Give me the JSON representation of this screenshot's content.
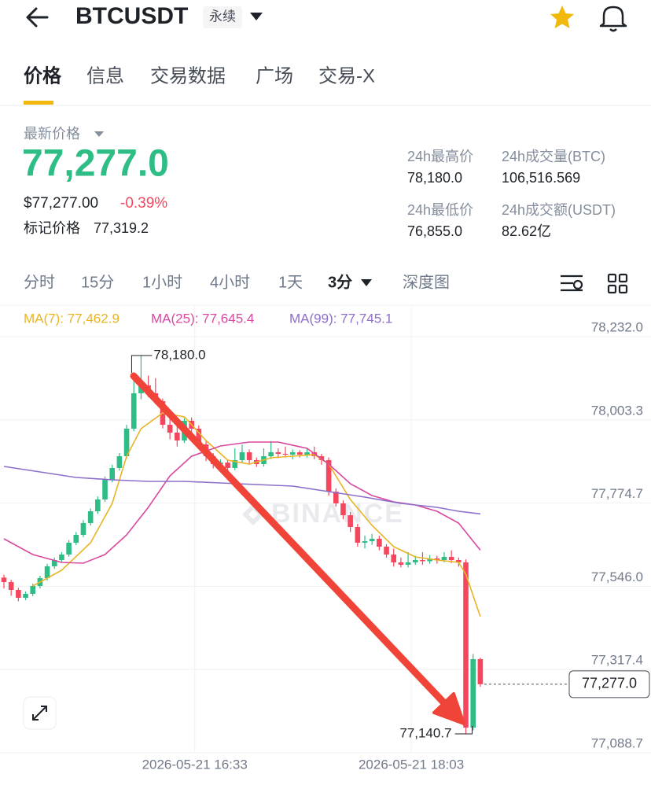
{
  "header": {
    "title": "BTCUSDT",
    "badge": "永续"
  },
  "tabs": [
    "价格",
    "信息",
    "交易数据",
    "广场",
    "交易-X"
  ],
  "price": {
    "label": "最新价格",
    "last": "77,277.0",
    "usd": "$77,277.00",
    "change": "-0.39%",
    "mark_label": "标记价格",
    "mark_price": "77,319.2"
  },
  "stats": [
    {
      "label": "24h最高价",
      "value": "78,180.0"
    },
    {
      "label": "24h成交量(BTC)",
      "value": "106,516.569"
    },
    {
      "label": "24h最低价",
      "value": "76,855.0"
    },
    {
      "label": "24h成交额(USDT)",
      "value": "82.62亿"
    }
  ],
  "timeframes": [
    "分时",
    "15分",
    "1小时",
    "4小时",
    "1天",
    "3分",
    "深度图"
  ],
  "chart_data": {
    "type": "candlestick",
    "categories": [
      null,
      null,
      null,
      null,
      null,
      null,
      null,
      null,
      null,
      null,
      null,
      null,
      null,
      null,
      null,
      null,
      null,
      null,
      null,
      null,
      null,
      null,
      null,
      null,
      null,
      null,
      "2026-05-21 16:33",
      null,
      null,
      null,
      null,
      null,
      null,
      null,
      null,
      null,
      null,
      null,
      null,
      null,
      null,
      null,
      null,
      null,
      null,
      null,
      null,
      null,
      null,
      null,
      null,
      null,
      null,
      null,
      null,
      null,
      "2026-05-21 18:03",
      null,
      null,
      null,
      null,
      null,
      null,
      null,
      null,
      null,
      null
    ],
    "open": [
      77570.0,
      77557.7,
      77536.1,
      77514.5,
      77525.3,
      77546.9,
      77568.5,
      77600.9,
      77618.2,
      77633.3,
      77665.8,
      77687.4,
      77719.8,
      77752.2,
      77784.6,
      77838.7,
      77871.1,
      77903.5,
      77979.1,
      78076.4,
      78098.0,
      78076.4,
      78054.8,
      77989.9,
      77968.3,
      77946.7,
      78000.8,
      77979.1,
      77935.9,
      77903.5,
      77881.9,
      77886.0,
      77871.1,
      77892.7,
      77914.3,
      77892.7,
      77881.9,
      77903.5,
      77914.3,
      77910.0,
      77907.8,
      77914.3,
      77907.8,
      77914.3,
      77903.5,
      77892.7,
      77806.2,
      77773.8,
      77741.4,
      77709.0,
      77665.8,
      77670.0,
      77676.6,
      77655.0,
      77633.3,
      77611.7,
      77605.3,
      77611.7,
      77618.2,
      77615.0,
      77622.5,
      77618.2,
      77626.9,
      77618.2,
      77611.7,
      77157.9,
      77345.9
    ],
    "high": [
      77578.0,
      77564.0,
      77542.0,
      77532.0,
      77553.0,
      77575.0,
      77608.0,
      77625.0,
      77640.0,
      77673.0,
      77695.0,
      77728.0,
      77760.0,
      77793.0,
      77848.0,
      77880.0,
      77912.0,
      77990.0,
      78110.0,
      78180.0,
      78125.0,
      78118.0,
      78062.0,
      78010.0,
      77990.0,
      78008.0,
      78010.0,
      77988.0,
      77945.0,
      77912.0,
      77895.0,
      77893.0,
      77925.0,
      77935.0,
      77922.0,
      77900.0,
      77925.0,
      77945.0,
      77925.0,
      77930.0,
      77922.0,
      77920.0,
      77925.0,
      77930.0,
      77910.0,
      77900.0,
      77815.0,
      77782.0,
      77750.0,
      77718.0,
      77685.0,
      77690.0,
      77685.0,
      77662.0,
      77650.0,
      77625.0,
      77640.0,
      77630.0,
      77640.0,
      77632.0,
      77630.0,
      77640.0,
      77645.0,
      77625.0,
      77620.0,
      77360.0,
      77350.0
    ],
    "low": [
      77540.0,
      77520.0,
      77505.0,
      77508.0,
      77519.0,
      77540.0,
      77562.0,
      77594.0,
      77612.0,
      77627.0,
      77659.0,
      77681.0,
      77713.0,
      77745.0,
      77778.0,
      77832.0,
      77864.0,
      77897.0,
      77972.0,
      78060.0,
      78066.0,
      78046.0,
      77980.0,
      77950.0,
      77930.0,
      77940.0,
      77960.0,
      77925.0,
      77890.0,
      77870.0,
      77872.0,
      77862.0,
      77865.0,
      77885.0,
      77884.0,
      77874.0,
      77875.0,
      77896.0,
      77898.0,
      77900.0,
      77895.0,
      77900.0,
      77900.0,
      77895.0,
      77880.0,
      77795.0,
      77765.0,
      77730.0,
      77695.0,
      77655.0,
      77650.0,
      77660.0,
      77645.0,
      77625.0,
      77600.0,
      77598.0,
      77598.0,
      77605.0,
      77605.0,
      77608.0,
      77608.0,
      77612.0,
      77610.0,
      77600.0,
      77140.7,
      77150.0,
      77270.0
    ],
    "close": [
      77557.7,
      77536.1,
      77514.5,
      77525.3,
      77546.9,
      77568.5,
      77600.9,
      77618.2,
      77633.3,
      77665.8,
      77687.4,
      77719.8,
      77752.2,
      77784.6,
      77838.7,
      77871.1,
      77903.5,
      77979.1,
      78076.4,
      78098.0,
      78076.4,
      78054.8,
      77989.9,
      77968.3,
      77946.7,
      78000.8,
      77979.1,
      77935.9,
      77903.5,
      77881.9,
      77886.0,
      77871.1,
      77892.7,
      77914.3,
      77892.7,
      77881.9,
      77903.5,
      77914.3,
      77910.0,
      77907.8,
      77914.3,
      77907.8,
      77914.3,
      77903.5,
      77892.7,
      77806.2,
      77773.8,
      77741.4,
      77709.0,
      77665.8,
      77670.0,
      77676.6,
      77655.0,
      77633.3,
      77611.7,
      77605.3,
      77611.7,
      77618.2,
      77615.0,
      77622.5,
      77618.2,
      77626.9,
      77618.2,
      77611.7,
      77157.9,
      77345.9,
      77277.0
    ],
    "up_color": "#2ebd85",
    "down_color": "#f6465d",
    "series": [
      {
        "name": "MA(7): 77,462.9",
        "color": "#e9b424",
        "x": [
          4,
          8,
          12,
          15,
          17,
          19,
          22,
          25,
          28,
          31,
          34,
          37,
          40,
          43,
          45,
          48,
          51,
          54,
          57,
          60,
          63,
          64,
          66
        ],
        "values": [
          77546.9,
          77590.1,
          77665.8,
          77773.8,
          77903.5,
          77979.1,
          78022.4,
          78011.6,
          77946.7,
          77892.7,
          77881.9,
          77899.2,
          77903.5,
          77907.8,
          77881.9,
          77784.6,
          77713.3,
          77655.0,
          77626.9,
          77618.2,
          77611.7,
          77579.3,
          77462.9
        ]
      },
      {
        "name": "MA(25): 77,645.4",
        "color": "#d9489f",
        "x": [
          0,
          4,
          8,
          11,
          14,
          17,
          20,
          23,
          26,
          30,
          34,
          38,
          42,
          45,
          48,
          51,
          54,
          57,
          60,
          63,
          66
        ],
        "values": [
          77676.6,
          77633.3,
          77611.7,
          77609.6,
          77633.3,
          77687.4,
          77763.0,
          77849.5,
          77903.5,
          77931.6,
          77942.4,
          77942.4,
          77925.1,
          77881.9,
          77827.9,
          77795.4,
          77778.1,
          77769.5,
          77752.2,
          77719.8,
          77645.4
        ]
      },
      {
        "name": "MA(99): 77,745.1",
        "color": "#8c6fcb",
        "x": [
          0,
          5,
          10,
          15,
          20,
          25,
          30,
          35,
          40,
          45,
          50,
          55,
          60,
          63,
          66
        ],
        "values": [
          77875.4,
          77860.3,
          77845.1,
          77838.7,
          77834.3,
          77834.3,
          77830.0,
          77825.7,
          77821.4,
          77806.2,
          77791.1,
          77773.8,
          77763.0,
          77752.2,
          77745.1
        ]
      }
    ],
    "ylim": [
      77088.7,
      78314.1
    ],
    "yticks": [
      {
        "value": 78232.0,
        "label": "78,232.0"
      },
      {
        "value": 78003.3,
        "label": "78,003.3"
      },
      {
        "value": 77774.7,
        "label": "77,774.7"
      },
      {
        "value": 77546.0,
        "label": "77,546.0"
      },
      {
        "value": 77317.4,
        "label": "77,317.4"
      },
      {
        "value": 77088.7,
        "label": "77,088.7"
      }
    ],
    "grid": true,
    "last_price": {
      "value": 77277.0,
      "label": "77,277.0"
    },
    "max_label": "78,180.0",
    "min_label": "77,140.7",
    "watermark": "BINANCE"
  }
}
